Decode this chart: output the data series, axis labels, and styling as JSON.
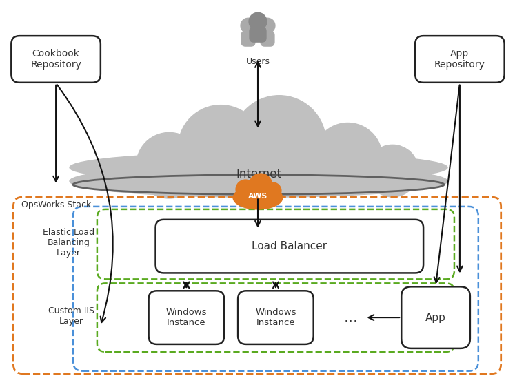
{
  "fig_width": 7.47,
  "fig_height": 5.62,
  "bg_color": "#ffffff",
  "cloud_color": "#c0c0c0",
  "cloud_edge_color": "#606060",
  "cloud_label": "Internet",
  "users_label": "Users",
  "aws_label": "AWS",
  "aws_color": "#e07820",
  "opsworks_label": "OpsWorks Stack",
  "opsworks_border_color": "#e07820",
  "inner_border_color": "#4a90d9",
  "elb_layer_color": "#5aaa20",
  "elb_label": "Elastic Load\nBalancing\nLayer",
  "lb_label": "Load Balancer",
  "custom_label": "Custom IIS\nLayer",
  "win1_label": "Windows\nInstance",
  "win2_label": "Windows\nInstance",
  "app_label": "App",
  "cookbook_label": "Cookbook\nRepository",
  "app_repo_label": "App\nRepository",
  "box_bg": "#ffffff",
  "box_edge": "#222222",
  "text_color": "#333333",
  "arrow_color": "#111111",
  "users_color": "#888888",
  "users_color2": "#aaaaaa"
}
